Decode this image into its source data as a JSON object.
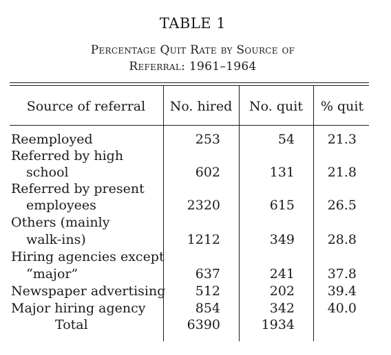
{
  "table": {
    "label": "TABLE 1",
    "caption_line1": "Percentage Quit Rate by Source of",
    "caption_line2": "Referral: 1961–1964",
    "headers": {
      "source": "Source of referral",
      "hired": "No. hired",
      "quit": "No. quit",
      "pct": "% quit"
    },
    "rows": [
      {
        "label_lines": [
          "Reemployed"
        ],
        "hired": "253",
        "quit": "54",
        "pct": "21.3"
      },
      {
        "label_lines": [
          "Referred by high",
          "school"
        ],
        "hired": "602",
        "quit": "131",
        "pct": "21.8"
      },
      {
        "label_lines": [
          "Referred by present",
          "employees"
        ],
        "hired": "2320",
        "quit": "615",
        "pct": "26.5"
      },
      {
        "label_lines": [
          "Others (mainly",
          "walk-ins)"
        ],
        "hired": "1212",
        "quit": "349",
        "pct": "28.8"
      },
      {
        "label_lines": [
          "Hiring agencies except",
          "“major”"
        ],
        "hired": "637",
        "quit": "241",
        "pct": "37.8"
      },
      {
        "label_lines": [
          "Newspaper advertising"
        ],
        "hired": "512",
        "quit": "202",
        "pct": "39.4"
      },
      {
        "label_lines": [
          "Major hiring agency"
        ],
        "hired": "854",
        "quit": "342",
        "pct": "40.0"
      }
    ],
    "total": {
      "label": "Total",
      "hired": "6390",
      "quit": "1934"
    }
  }
}
